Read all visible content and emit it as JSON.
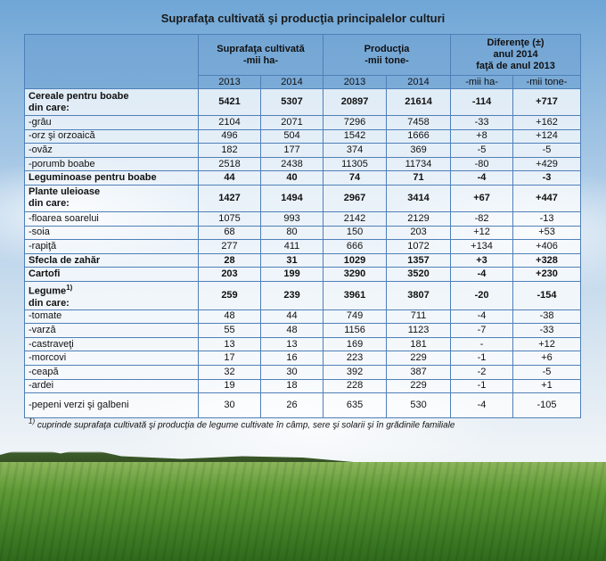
{
  "title": "Suprafaţa cultivată şi producţia principalelor culturi",
  "header": {
    "groups": [
      [
        "Suprafaţa cultivată",
        "-mii ha-"
      ],
      [
        "Producţia",
        "-mii tone-"
      ],
      [
        "Diferenţe (±)",
        "anul 2014",
        "faţă de anul 2013"
      ]
    ],
    "subheaders": [
      "2013",
      "2014",
      "2013",
      "2014",
      "-mii ha-",
      "-mii tone-"
    ]
  },
  "table": {
    "rows": [
      {
        "label": "Cereale pentru boabe",
        "sub": "din care:",
        "bold": true,
        "cells": [
          "5421",
          "5307",
          "20897",
          "21614",
          "-114",
          "+717"
        ]
      },
      {
        "label": "-grâu",
        "cells": [
          "2104",
          "2071",
          "7296",
          "7458",
          "-33",
          "+162"
        ]
      },
      {
        "label": "-orz şi orzoaică",
        "cells": [
          "496",
          "504",
          "1542",
          "1666",
          "+8",
          "+124"
        ]
      },
      {
        "label": "-ovăz",
        "cells": [
          "182",
          "177",
          "374",
          "369",
          "-5",
          "-5"
        ]
      },
      {
        "label": "-porumb boabe",
        "cells": [
          "2518",
          "2438",
          "11305",
          "11734",
          "-80",
          "+429"
        ]
      },
      {
        "label": "Leguminoase pentru boabe",
        "bold": true,
        "cells": [
          "44",
          "40",
          "74",
          "71",
          "-4",
          "-3"
        ]
      },
      {
        "label": "Plante uleioase",
        "sub": "din care:",
        "bold": true,
        "cells": [
          "1427",
          "1494",
          "2967",
          "3414",
          "+67",
          "+447"
        ]
      },
      {
        "label": "-floarea soarelui",
        "cells": [
          "1075",
          "993",
          "2142",
          "2129",
          "-82",
          "-13"
        ]
      },
      {
        "label": "-soia",
        "cells": [
          "68",
          "80",
          "150",
          "203",
          "+12",
          "+53"
        ]
      },
      {
        "label": "-rapiţă",
        "cells": [
          "277",
          "411",
          "666",
          "1072",
          "+134",
          "+406"
        ]
      },
      {
        "label": "Sfecla de zahăr",
        "bold": true,
        "cells": [
          "28",
          "31",
          "1029",
          "1357",
          "+3",
          "+328"
        ]
      },
      {
        "label": "Cartofi",
        "bold": true,
        "cells": [
          "203",
          "199",
          "3290",
          "3520",
          "-4",
          "+230"
        ]
      },
      {
        "label": "Legume",
        "sup": "1)",
        "sub": "din care:",
        "bold": true,
        "cells": [
          "259",
          "239",
          "3961",
          "3807",
          "-20",
          "-154"
        ]
      },
      {
        "label": "-tomate",
        "cells": [
          "48",
          "44",
          "749",
          "711",
          "-4",
          "-38"
        ]
      },
      {
        "label": "-varză",
        "cells": [
          "55",
          "48",
          "1156",
          "1123",
          "-7",
          "-33"
        ]
      },
      {
        "label": "-castraveţi",
        "cells": [
          "13",
          "13",
          "169",
          "181",
          "-",
          "+12"
        ]
      },
      {
        "label": "-morcovi",
        "cells": [
          "17",
          "16",
          "223",
          "229",
          "-1",
          "+6"
        ]
      },
      {
        "label": "-ceapă",
        "cells": [
          "32",
          "30",
          "392",
          "387",
          "-2",
          "-5"
        ]
      },
      {
        "label": "-ardei",
        "cells": [
          "19",
          "18",
          "228",
          "229",
          "-1",
          "+1"
        ]
      },
      {
        "label": "-pepeni verzi şi galbeni",
        "cells": [
          "30",
          "26",
          "635",
          "530",
          "-4",
          "-105"
        ]
      }
    ]
  },
  "footnote": {
    "sup": "1)",
    "text": "cuprinde suprafaţa cultivată şi producţia de legume cultivate în câmp, sere şi solarii şi în grădinile familiale"
  }
}
